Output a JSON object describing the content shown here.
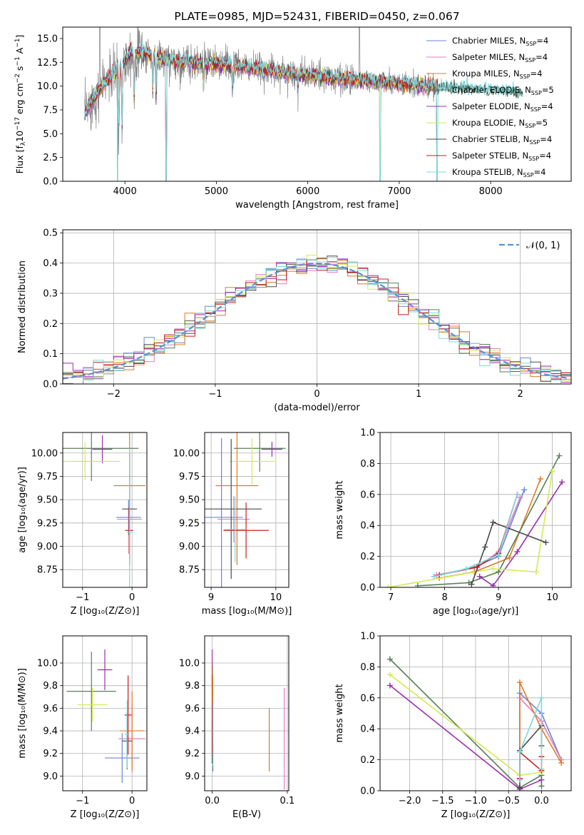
{
  "title": "PLATE=0985, MJD=52431, FIBERID=0450, z=0.067",
  "palette": {
    "chabrier_miles": "#6a86d8",
    "salpeter_miles": "#e17fc4",
    "kroupa_miles": "#e07b24",
    "chabrier_elodie": "#5a7f5a",
    "salpeter_elodie": "#9a2fb0",
    "kroupa_elodie": "#d4ea52",
    "chabrier_stelib": "#4a4a4a",
    "salpeter_stelib": "#cc1b1b",
    "kroupa_stelib": "#7ed9dc",
    "data_gray": "#808080",
    "normal_dashed": "#5b8fd6"
  },
  "chart_data": [
    {
      "id": "spectrum",
      "type": "line",
      "title": "PLATE=0985, MJD=52431, FIBERID=0450, z=0.067",
      "xlabel": "wavelength [Angstrom, rest frame]",
      "ylabel_parts": [
        "Flux [f",
        "λ",
        "10",
        "−17",
        " erg cm",
        "−2",
        " s",
        "−1",
        " A",
        "−1",
        "]"
      ],
      "xlim": [
        3320,
        8880
      ],
      "ylim": [
        0,
        16.2
      ],
      "xticks": [
        4000,
        5000,
        6000,
        7000,
        8000
      ],
      "yticks": [
        "0.0",
        "2.5",
        "5.0",
        "7.5",
        "10.0",
        "12.5",
        "15.0"
      ],
      "grid": false,
      "legend_position": "upper-right",
      "legend": [
        {
          "label": "Chabrier MILES, N",
          "sub": "SSP",
          "tail": "=4"
        },
        {
          "label": "Salpeter MILES, N",
          "sub": "SSP",
          "tail": "=4"
        },
        {
          "label": "Kroupa MILES, N",
          "sub": "SSP",
          "tail": "=4"
        },
        {
          "label": "Chabrier ELODIE, N",
          "sub": "SSP",
          "tail": "=5"
        },
        {
          "label": "Salpeter ELODIE, N",
          "sub": "SSP",
          "tail": "=4"
        },
        {
          "label": "Kroupa ELODIE, N",
          "sub": "SSP",
          "tail": "=5"
        },
        {
          "label": "Chabrier STELIB, N",
          "sub": "SSP",
          "tail": "=4"
        },
        {
          "label": "Salpeter STELIB, N",
          "sub": "SSP",
          "tail": "=4"
        },
        {
          "label": "Kroupa STELIB, N",
          "sub": "SSP",
          "tail": "=4"
        }
      ],
      "continuum_x": [
        3550,
        3650,
        3750,
        3850,
        3950,
        4050,
        4200,
        4500,
        4800,
        5000,
        5300,
        5600,
        6000,
        6300,
        6600,
        7000,
        7300,
        7600,
        7800,
        8000,
        8200,
        8500,
        8800
      ],
      "continuum_y": [
        7.0,
        8.5,
        10.0,
        11.0,
        12.0,
        13.5,
        13.5,
        12.6,
        12.4,
        12.3,
        12.0,
        11.6,
        11.2,
        10.8,
        10.6,
        10.2,
        10.0,
        9.8,
        9.7,
        9.6,
        9.4,
        9.1,
        8.9
      ],
      "absorption_lines": [
        {
          "x": 3934,
          "y": 4.5
        },
        {
          "x": 3969,
          "y": 5.0
        },
        {
          "x": 4101,
          "y": 8.0
        },
        {
          "x": 4304,
          "y": 9.0
        },
        {
          "x": 4340,
          "y": 8.5
        },
        {
          "x": 4861,
          "y": 9.5
        },
        {
          "x": 5175,
          "y": 9.5
        },
        {
          "x": 5892,
          "y": 9.8
        }
      ],
      "emission_lines": [
        {
          "x": 3727,
          "y": 16.2
        },
        {
          "x": 6563,
          "y": 16.2
        }
      ],
      "model_drops": [
        {
          "x": 3920,
          "y": 0.0
        },
        {
          "x": 4450,
          "y": 0.0
        },
        {
          "x": 6790,
          "y": 0.0
        },
        {
          "x": 7415,
          "y": 0.0
        }
      ]
    },
    {
      "id": "residuals",
      "type": "histogram",
      "xlabel": "(data-model)/error",
      "ylabel": "Normed distribution",
      "xlim": [
        -2.5,
        2.5
      ],
      "ylim": [
        0,
        0.51
      ],
      "xticks": [
        "−2",
        "−1",
        "0",
        "1",
        "2"
      ],
      "xtick_values": [
        -2,
        -1,
        0,
        1,
        2
      ],
      "yticks": [
        "0.0",
        "0.1",
        "0.2",
        "0.3",
        "0.4",
        "0.5"
      ],
      "ytick_values": [
        0,
        0.1,
        0.2,
        0.3,
        0.4,
        0.5
      ],
      "grid": true,
      "legend_position": "upper-right",
      "legend": [
        {
          "label": "𝒩(0, 1)"
        }
      ],
      "bin_width": 0.1,
      "n_series": 9
    },
    {
      "id": "age_vs_Z",
      "type": "errorbar",
      "xlabel": "Z [log₁₀(Z/Z⊙)]",
      "ylabel": "age  [log₁₀(age/yr)]",
      "xlim": [
        -1.4,
        0.3
      ],
      "ylim": [
        8.56,
        10.22
      ],
      "xticks": [
        "−1",
        "0"
      ],
      "xtick_values": [
        -1,
        0
      ],
      "yticks": [
        "8.75",
        "9.00",
        "9.25",
        "9.50",
        "9.75",
        "10.00"
      ],
      "ytick_values": [
        8.75,
        9.0,
        9.25,
        9.5,
        9.75,
        10.0
      ],
      "grid": true,
      "points": [
        {
          "series": "chabrier_miles",
          "x": -0.07,
          "xerr": 0.25,
          "y": 9.31,
          "yerr": 0.19
        },
        {
          "series": "salpeter_miles",
          "x": -0.05,
          "xerr": 0.25,
          "y": 9.29,
          "yerr": 0.19
        },
        {
          "series": "kroupa_miles",
          "x": -0.05,
          "xerr": 0.32,
          "y": 9.65,
          "yerr": 0.8
        },
        {
          "series": "chabrier_elodie",
          "x": -0.82,
          "xerr": 0.95,
          "y": 10.05,
          "yerr": 0.35
        },
        {
          "series": "salpeter_elodie",
          "x": -0.6,
          "xerr": 0.2,
          "y": 10.04,
          "yerr": 0.15
        },
        {
          "series": "kroupa_elodie",
          "x": -0.95,
          "xerr": 0.7,
          "y": 9.91,
          "yerr": 0.2
        },
        {
          "series": "chabrier_stelib",
          "x": -0.05,
          "xerr": 0.15,
          "y": 9.4,
          "yerr": 0.6
        },
        {
          "series": "salpeter_stelib",
          "x": -0.06,
          "xerr": 0.08,
          "y": 9.17,
          "yerr": 0.25
        },
        {
          "series": "kroupa_stelib",
          "x": -0.05,
          "xerr": 0.05,
          "y": 9.15,
          "yerr": 0.9
        }
      ]
    },
    {
      "id": "age_vs_mass",
      "type": "errorbar",
      "xlabel": "mass [log₁₀(M/M⊙)]",
      "ylabel": "",
      "xlim": [
        8.9,
        10.2
      ],
      "ylim": [
        8.56,
        10.22
      ],
      "xticks": [
        "9",
        "10"
      ],
      "xtick_values": [
        9,
        10
      ],
      "yticks": [
        "8.75",
        "9.00",
        "9.25",
        "9.50",
        "9.75",
        "10.00"
      ],
      "ytick_values": [
        8.75,
        9.0,
        9.25,
        9.5,
        9.75,
        10.0
      ],
      "grid": true,
      "points": [
        {
          "series": "chabrier_miles",
          "x": 9.16,
          "xerr": 0.33,
          "y": 9.31,
          "yerr": 0.85
        },
        {
          "series": "salpeter_miles",
          "x": 9.35,
          "xerr": 0.25,
          "y": 9.29,
          "yerr": 0.25
        },
        {
          "series": "kroupa_miles",
          "x": 9.4,
          "xerr": 0.33,
          "y": 9.65,
          "yerr": 0.85
        },
        {
          "series": "chabrier_elodie",
          "x": 9.75,
          "xerr": 0.4,
          "y": 10.05,
          "yerr": 0.25
        },
        {
          "series": "salpeter_elodie",
          "x": 9.94,
          "xerr": 0.16,
          "y": 10.04,
          "yerr": 0.08
        },
        {
          "series": "kroupa_elodie",
          "x": 9.63,
          "xerr": 0.35,
          "y": 9.91,
          "yerr": 0.25
        },
        {
          "series": "chabrier_stelib",
          "x": 9.31,
          "xerr": 0.47,
          "y": 9.4,
          "yerr": 0.75
        },
        {
          "series": "salpeter_stelib",
          "x": 9.54,
          "xerr": 0.35,
          "y": 9.17,
          "yerr": 0.3
        },
        {
          "series": "kroupa_stelib",
          "x": 9.37,
          "xerr": 0.17,
          "y": 9.18,
          "yerr": 0.35
        }
      ]
    },
    {
      "id": "weight_vs_age",
      "type": "line",
      "xlabel": "age  [log₁₀(age/yr)]",
      "ylabel": "mass weight",
      "xlim": [
        6.8,
        10.35
      ],
      "ylim": [
        0,
        1.0
      ],
      "xticks": [
        "7",
        "8",
        "9",
        "10"
      ],
      "xtick_values": [
        7,
        8,
        9,
        10
      ],
      "yticks": [
        "0.0",
        "0.2",
        "0.4",
        "0.6",
        "0.8",
        "1.0"
      ],
      "ytick_values": [
        0,
        0.2,
        0.4,
        0.6,
        0.8,
        1.0
      ],
      "grid": true,
      "series": [
        {
          "name": "chabrier_miles",
          "x": [
            7.8,
            8.55,
            9.0,
            9.48
          ],
          "y": [
            0.07,
            0.13,
            0.2,
            0.63
          ]
        },
        {
          "name": "salpeter_miles",
          "x": [
            7.85,
            8.6,
            9.0,
            9.4
          ],
          "y": [
            0.08,
            0.13,
            0.23,
            0.58
          ]
        },
        {
          "name": "kroupa_miles",
          "x": [
            7.9,
            8.55,
            9.2,
            9.78
          ],
          "y": [
            0.06,
            0.1,
            0.19,
            0.7
          ]
        },
        {
          "name": "chabrier_elodie",
          "x": [
            7.5,
            8.45,
            9.0,
            10.13
          ],
          "y": [
            0.01,
            0.03,
            0.1,
            0.85
          ]
        },
        {
          "name": "salpeter_elodie",
          "x": [
            8.65,
            8.9,
            9.35,
            10.18
          ],
          "y": [
            0.07,
            0.01,
            0.23,
            0.68
          ]
        },
        {
          "name": "kroupa_elodie",
          "x": [
            6.95,
            8.9,
            9.7,
            10.0
          ],
          "y": [
            0.0,
            0.12,
            0.1,
            0.75
          ]
        },
        {
          "name": "chabrier_stelib",
          "x": [
            8.5,
            8.75,
            8.9,
            9.88
          ],
          "y": [
            0.02,
            0.26,
            0.42,
            0.29
          ]
        },
        {
          "name": "salpeter_stelib",
          "x": [
            7.9,
            8.6,
            9.0,
            9.35
          ],
          "y": [
            0.08,
            0.13,
            0.22,
            0.6
          ]
        },
        {
          "name": "kroupa_stelib",
          "x": [
            7.8,
            8.4,
            9.0,
            9.35
          ],
          "y": [
            0.07,
            0.12,
            0.21,
            0.6
          ]
        }
      ]
    },
    {
      "id": "mass_vs_Z",
      "type": "errorbar",
      "xlabel": "Z [log₁₀(Z/Z⊙)]",
      "ylabel": "mass [log₁₀(M/M⊙)]",
      "xlim": [
        -1.4,
        0.3
      ],
      "ylim": [
        8.87,
        10.24
      ],
      "xticks": [
        "−1",
        "0"
      ],
      "xtick_values": [
        -1,
        0
      ],
      "yticks": [
        "9.0",
        "9.2",
        "9.4",
        "9.6",
        "9.8",
        "10.0"
      ],
      "ytick_values": [
        9.0,
        9.2,
        9.4,
        9.6,
        9.8,
        10.0
      ],
      "grid": true,
      "points": [
        {
          "series": "chabrier_miles",
          "x": -0.2,
          "xerr": 0.35,
          "y": 9.16,
          "yerr": 0.22
        },
        {
          "series": "salpeter_miles",
          "x": 0.0,
          "xerr": 0.27,
          "y": 9.33,
          "yerr": 0.3
        },
        {
          "series": "kroupa_miles",
          "x": 0.0,
          "xerr": 0.25,
          "y": 9.4,
          "yerr": 0.35
        },
        {
          "series": "chabrier_elodie",
          "x": -0.82,
          "xerr": 0.5,
          "y": 9.75,
          "yerr": 0.35
        },
        {
          "series": "salpeter_elodie",
          "x": -0.55,
          "xerr": 0.15,
          "y": 9.94,
          "yerr": 0.18
        },
        {
          "series": "kroupa_elodie",
          "x": -0.8,
          "xerr": 0.3,
          "y": 9.63,
          "yerr": 0.15
        },
        {
          "series": "chabrier_stelib",
          "x": -0.1,
          "xerr": 0.1,
          "y": 9.31,
          "yerr": 0.25
        },
        {
          "series": "salpeter_stelib",
          "x": -0.08,
          "xerr": 0.07,
          "y": 9.54,
          "yerr": 0.35
        },
        {
          "series": "kroupa_stelib",
          "x": -0.1,
          "xerr": 0.05,
          "y": 9.37,
          "yerr": 0.3
        }
      ]
    },
    {
      "id": "mass_vs_ebv",
      "type": "errorbar",
      "xlabel": "E(B-V)",
      "ylabel": "",
      "xlim": [
        -0.01,
        0.102
      ],
      "ylim": [
        8.87,
        10.24
      ],
      "xticks": [
        "0.0",
        "0.1"
      ],
      "xtick_values": [
        0.0,
        0.1
      ],
      "yticks": [
        "9.0",
        "9.2",
        "9.4",
        "9.6",
        "9.8",
        "10.0"
      ],
      "ytick_values": [
        9.0,
        9.2,
        9.4,
        9.6,
        9.8,
        10.0
      ],
      "grid": true,
      "points": [
        {
          "series": "chabrier_miles",
          "x": 0.001,
          "xerr": 0.0,
          "y": 9.16,
          "yerr": 0.12
        },
        {
          "series": "salpeter_miles",
          "x": 0.096,
          "xerr": 0.0,
          "y": 9.33,
          "yerr": 0.45
        },
        {
          "series": "kroupa_miles",
          "x": 0.076,
          "xerr": 0.0,
          "y": 9.32,
          "yerr": 0.28
        },
        {
          "series": "chabrier_elodie",
          "x": 0.001,
          "xerr": 0.0,
          "y": 9.55,
          "yerr": 0.35
        },
        {
          "series": "salpeter_elodie",
          "x": 0.0,
          "xerr": 0.0,
          "y": 9.94,
          "yerr": 0.18
        },
        {
          "series": "kroupa_elodie",
          "x": 0.001,
          "xerr": 0.0,
          "y": 9.63,
          "yerr": 0.35
        },
        {
          "series": "chabrier_stelib",
          "x": 0.0,
          "xerr": 0.0,
          "y": 9.31,
          "yerr": 0.2
        },
        {
          "series": "salpeter_stelib",
          "x": 0.0,
          "xerr": 0.0,
          "y": 9.54,
          "yerr": 0.35
        },
        {
          "series": "kroupa_stelib",
          "x": 0.001,
          "xerr": 0.0,
          "y": 9.37,
          "yerr": 0.28
        }
      ]
    },
    {
      "id": "weight_vs_Z",
      "type": "line",
      "xlabel": "Z [log₁₀(Z/Z⊙)]",
      "ylabel": "mass weight",
      "xlim": [
        -2.45,
        0.45
      ],
      "ylim": [
        0,
        1.0
      ],
      "xticks": [
        "−2.0",
        "−1.5",
        "−1.0",
        "−0.5",
        "0.0"
      ],
      "xtick_values": [
        -2.0,
        -1.5,
        -1.0,
        -0.5,
        0.0
      ],
      "yticks": [
        "0.0",
        "0.2",
        "0.4",
        "0.6",
        "0.8",
        "1.0"
      ],
      "ytick_values": [
        0,
        0.2,
        0.4,
        0.6,
        0.8,
        1.0
      ],
      "grid": true,
      "series": [
        {
          "name": "chabrier_miles",
          "x": [
            -0.33,
            -0.33,
            0.0,
            0.3
          ],
          "y": [
            0.07,
            0.63,
            0.5,
            0.2
          ]
        },
        {
          "name": "salpeter_miles",
          "x": [
            -0.33,
            -0.33,
            0.0,
            0.3
          ],
          "y": [
            0.08,
            0.6,
            0.45,
            0.2
          ]
        },
        {
          "name": "kroupa_miles",
          "x": [
            -0.33,
            -0.33,
            0.0,
            0.3
          ],
          "y": [
            0.1,
            0.7,
            0.4,
            0.18
          ]
        },
        {
          "name": "chabrier_elodie",
          "x": [
            -2.3,
            -0.33,
            0.0,
            0.0
          ],
          "y": [
            0.85,
            0.02,
            0.1,
            0.03
          ]
        },
        {
          "name": "salpeter_elodie",
          "x": [
            -2.3,
            -0.33,
            0.0
          ],
          "y": [
            0.68,
            0.01,
            0.07
          ]
        },
        {
          "name": "kroupa_elodie",
          "x": [
            -2.3,
            -0.33,
            0.0
          ],
          "y": [
            0.75,
            0.1,
            0.12
          ]
        },
        {
          "name": "chabrier_stelib",
          "x": [
            -0.33,
            -0.33,
            0.0,
            0.0
          ],
          "y": [
            0.02,
            0.26,
            0.42,
            0.29
          ]
        },
        {
          "name": "salpeter_stelib",
          "x": [
            -0.33,
            -0.33,
            0.0,
            0.0
          ],
          "y": [
            0.08,
            0.25,
            0.13,
            0.22
          ]
        },
        {
          "name": "kroupa_stelib",
          "x": [
            -0.33,
            -0.33,
            0.0,
            0.0
          ],
          "y": [
            0.07,
            0.25,
            0.6,
            0.14
          ]
        }
      ]
    }
  ]
}
